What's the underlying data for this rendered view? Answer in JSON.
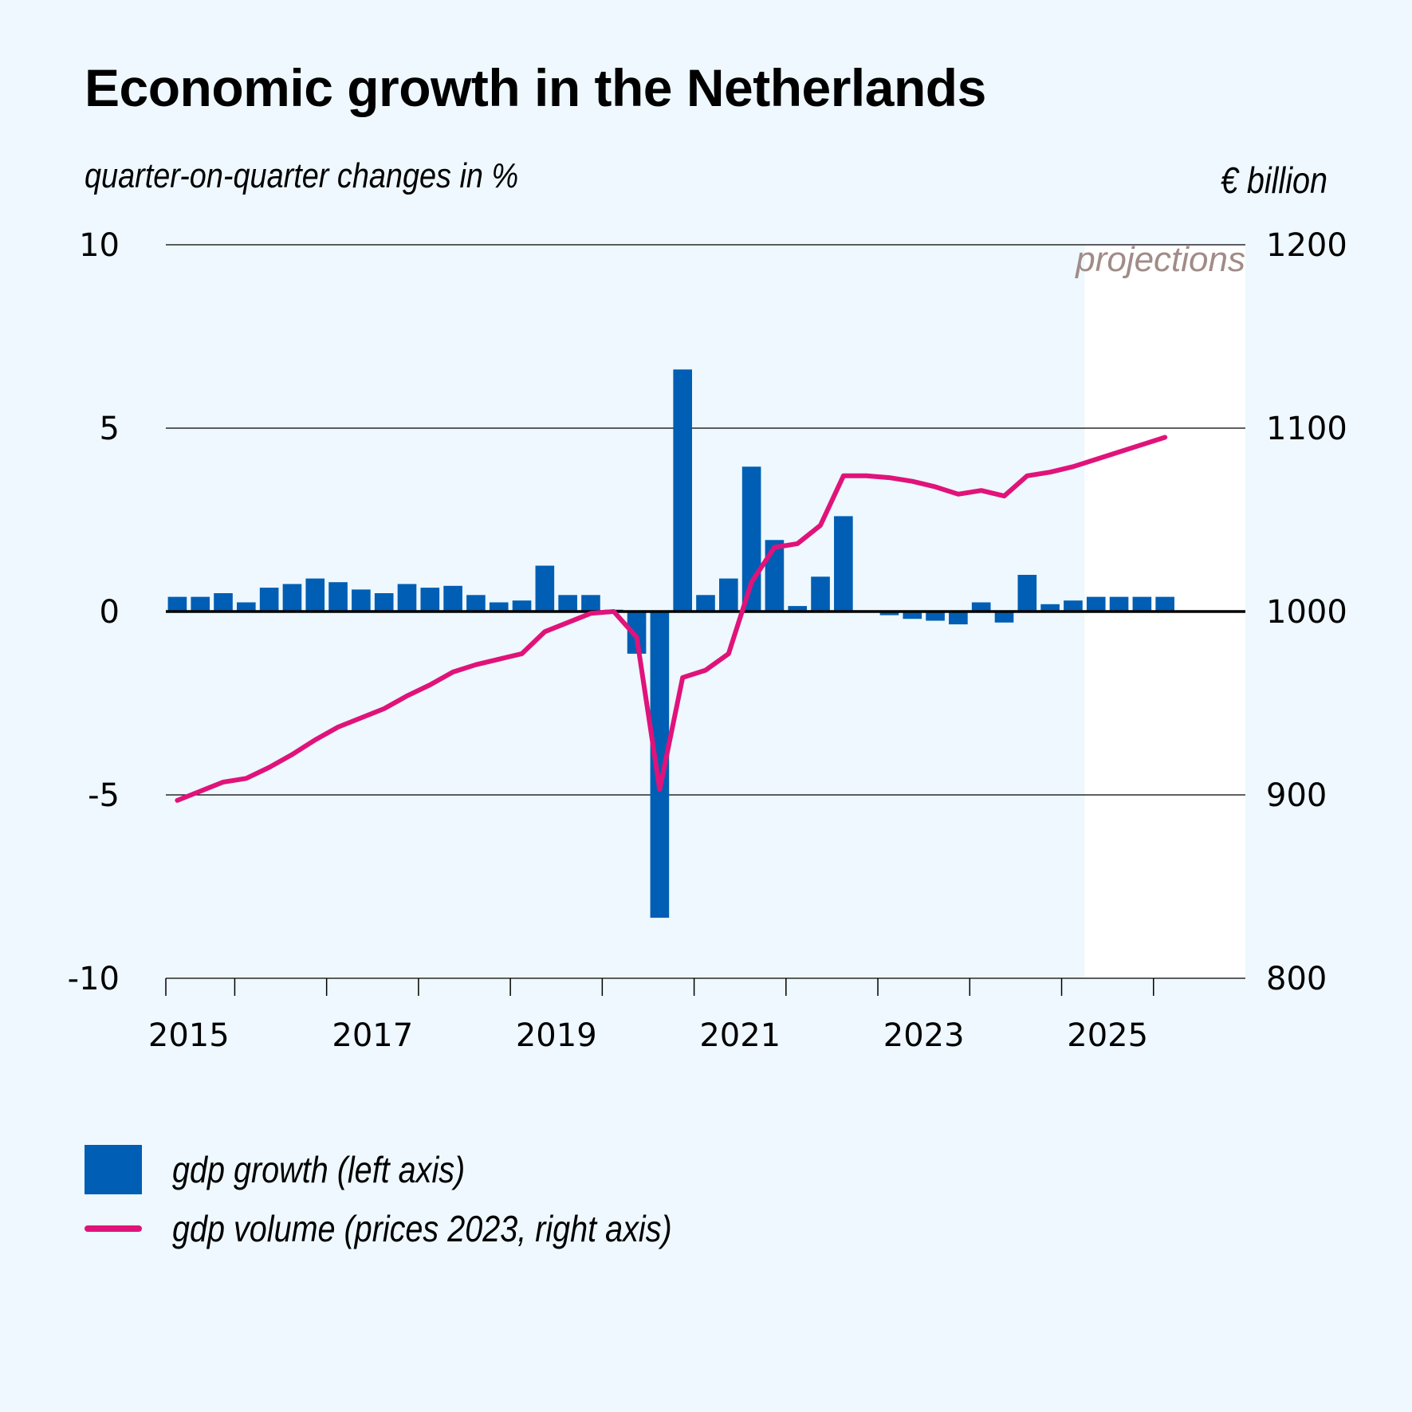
{
  "title": "Economic growth in the Netherlands",
  "chart_data": {
    "type": "bar",
    "title": "Economic growth in the Netherlands",
    "ylabel_left": "quarter-on-quarter changes in %",
    "ylabel_right": "€ billion",
    "ylim_left": [
      -10,
      10
    ],
    "ylim_right": [
      800,
      1200
    ],
    "yticks_left": [
      "10",
      "5",
      "0",
      "-5",
      "-10"
    ],
    "yticks_right": [
      "1200",
      "1100",
      "1000",
      "900",
      "800"
    ],
    "xticks": [
      "2015",
      "2017",
      "2019",
      "2021",
      "2023",
      "2025"
    ],
    "projection_label": "projections",
    "projection_start": "2024Q2",
    "grid": "horizontal",
    "legend_position": "bottom-left",
    "x": [
      "2014Q2",
      "2014Q3",
      "2014Q4",
      "2015Q1",
      "2015Q2",
      "2015Q3",
      "2015Q4",
      "2016Q1",
      "2016Q2",
      "2016Q3",
      "2016Q4",
      "2017Q1",
      "2017Q2",
      "2017Q3",
      "2017Q4",
      "2018Q1",
      "2018Q2",
      "2018Q3",
      "2018Q4",
      "2019Q1",
      "2019Q2",
      "2019Q3",
      "2019Q4",
      "2020Q1",
      "2020Q2",
      "2020Q3",
      "2020Q4",
      "2021Q1",
      "2021Q2",
      "2021Q3",
      "2021Q4",
      "2022Q1",
      "2022Q2",
      "2022Q3",
      "2022Q4",
      "2023Q1",
      "2023Q2",
      "2023Q3",
      "2023Q4",
      "2024Q1",
      "2024Q2",
      "2024Q3",
      "2024Q4",
      "2025Q1",
      "2025Q2",
      "2025Q3",
      "2025Q4"
    ],
    "series": [
      {
        "name": "gdp growth (left axis)",
        "type": "bar",
        "axis": "left",
        "color": "#005eb4",
        "values": [
          0.4,
          0.4,
          0.5,
          0.25,
          0.65,
          0.75,
          0.9,
          0.8,
          0.6,
          0.5,
          0.75,
          0.65,
          0.7,
          0.45,
          0.25,
          0.3,
          1.25,
          0.45,
          0.45,
          0.05,
          -1.15,
          -8.35,
          6.6,
          0.45,
          0.9,
          3.95,
          1.95,
          0.15,
          0.95,
          2.6,
          0.0,
          -0.1,
          -0.2,
          -0.25,
          -0.35,
          0.25,
          -0.3,
          1.0,
          0.2,
          0.3,
          0.4,
          0.4,
          0.4,
          0.4,
          null,
          null,
          null
        ]
      },
      {
        "name": "gdp volume (prices 2023, right axis)",
        "type": "line",
        "axis": "right",
        "color": "#e0137a",
        "values": [
          897,
          902,
          907,
          909,
          915,
          922,
          930,
          937,
          942,
          947,
          954,
          960,
          967,
          971,
          974,
          977,
          989,
          994,
          999,
          1000,
          986,
          903,
          964,
          968,
          977,
          1016,
          1035,
          1037,
          1047,
          1074,
          1074,
          1073,
          1071,
          1068,
          1064,
          1066,
          1063,
          1074,
          1076,
          1079,
          1083,
          1087,
          1091,
          1095,
          null,
          null,
          null
        ]
      }
    ]
  },
  "legend": {
    "bar_label": "gdp growth (left axis)",
    "bar_color": "#005eb4",
    "line_label": "gdp volume (prices 2023, right axis)",
    "line_color": "#e0137a"
  }
}
